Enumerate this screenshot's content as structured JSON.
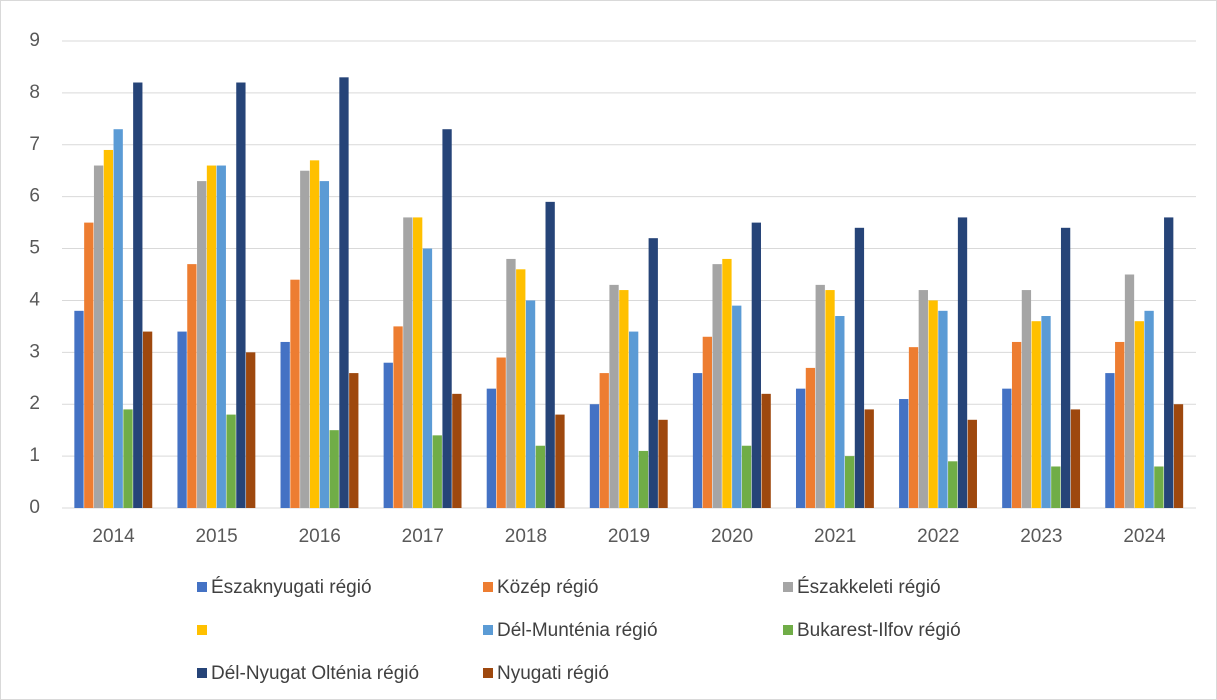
{
  "chart_data": {
    "type": "bar",
    "categories": [
      "2014",
      "2015",
      "2016",
      "2017",
      "2018",
      "2019",
      "2020",
      "2021",
      "2022",
      "2023",
      "2024"
    ],
    "series": [
      {
        "name": "Északnyugati régió",
        "color": "#4472c4",
        "values": [
          3.8,
          3.4,
          3.2,
          2.8,
          2.3,
          2.0,
          2.6,
          2.3,
          2.1,
          2.3,
          2.6
        ]
      },
      {
        "name": "Közép régió",
        "color": "#ed7d31",
        "values": [
          5.5,
          4.7,
          4.4,
          3.5,
          2.9,
          2.6,
          3.3,
          2.7,
          3.1,
          3.2,
          3.2
        ]
      },
      {
        "name": "Északkeleti régió",
        "color": "#a5a5a5",
        "values": [
          6.6,
          6.3,
          6.5,
          5.6,
          4.8,
          4.3,
          4.7,
          4.3,
          4.2,
          4.2,
          4.5
        ]
      },
      {
        "name": null,
        "color": "#ffc000",
        "values": [
          6.9,
          6.6,
          6.7,
          5.6,
          4.6,
          4.2,
          4.8,
          4.2,
          4.0,
          3.6,
          3.6
        ]
      },
      {
        "name": "Dél-Munténia régió",
        "color": "#5b9bd5",
        "values": [
          7.3,
          6.6,
          6.3,
          5.0,
          4.0,
          3.4,
          3.9,
          3.7,
          3.8,
          3.7,
          3.8
        ]
      },
      {
        "name": "Bukarest-Ilfov régió",
        "color": "#70ad47",
        "values": [
          1.9,
          1.8,
          1.5,
          1.4,
          1.2,
          1.1,
          1.2,
          1.0,
          0.9,
          0.8,
          0.8
        ]
      },
      {
        "name": "Dél-Nyugat Olténia régió",
        "color": "#264478",
        "values": [
          8.2,
          8.2,
          8.3,
          7.3,
          5.9,
          5.2,
          5.5,
          5.4,
          5.6,
          5.4,
          5.6
        ]
      },
      {
        "name": "Nyugati régió",
        "color": "#9e480e",
        "values": [
          3.4,
          3.0,
          2.6,
          2.2,
          1.8,
          1.7,
          2.2,
          1.9,
          1.7,
          1.9,
          2.0
        ]
      }
    ],
    "ylim": [
      0,
      9
    ],
    "yticks": [
      0,
      1,
      2,
      3,
      4,
      5,
      6,
      7,
      8,
      9
    ],
    "grid": true,
    "legend": "bottom"
  }
}
